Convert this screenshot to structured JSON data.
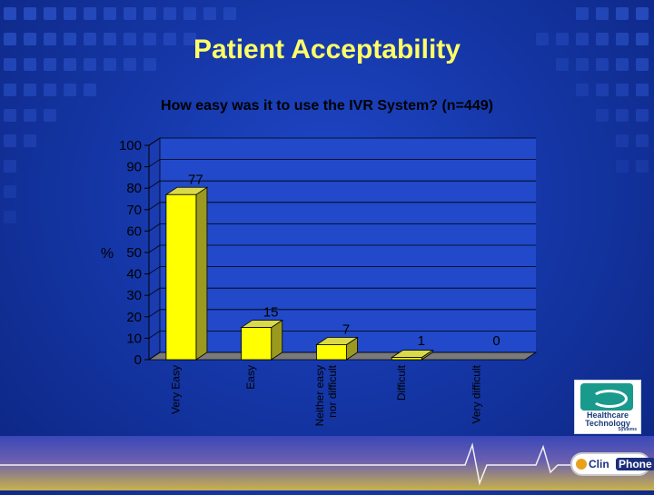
{
  "slide": {
    "title": "Patient Acceptability",
    "subtitle": "How easy was it to use the IVR System?  (n=449)"
  },
  "colors": {
    "background": "#1a3cb4",
    "title": "#ffff66",
    "bar_front": "#ffff00",
    "bar_side": "#9b9a1e",
    "bar_top": "#d9d94a",
    "bar_outline": "#000000",
    "plot_back": "#2149c9",
    "grid": "#000000"
  },
  "chart_data": {
    "type": "bar",
    "categories": [
      "Very Easy",
      "Easy",
      "Neither easy nor difficult",
      "Difficult",
      "Very difficult"
    ],
    "category_labels": [
      [
        "Very Easy"
      ],
      [
        "Easy"
      ],
      [
        "Neither easy",
        "nor difficult"
      ],
      [
        "Difficult"
      ],
      [
        "Very difficult"
      ]
    ],
    "values": [
      77,
      15,
      7,
      1,
      0
    ],
    "data_labels": [
      "77",
      "15",
      "7",
      "1",
      "0"
    ],
    "ylabel": "%",
    "ylim": [
      0,
      100
    ],
    "yticks": [
      "0",
      "10",
      "20",
      "30",
      "40",
      "50",
      "60",
      "70",
      "80",
      "90",
      "100"
    ],
    "grid": true,
    "style": "3d-bar"
  },
  "logos": {
    "healthcare_line1": "Healthcare",
    "healthcare_line2": "Technology",
    "healthcare_line3": "Systems",
    "clinphone_a": "Clin",
    "clinphone_b": "Phone"
  }
}
